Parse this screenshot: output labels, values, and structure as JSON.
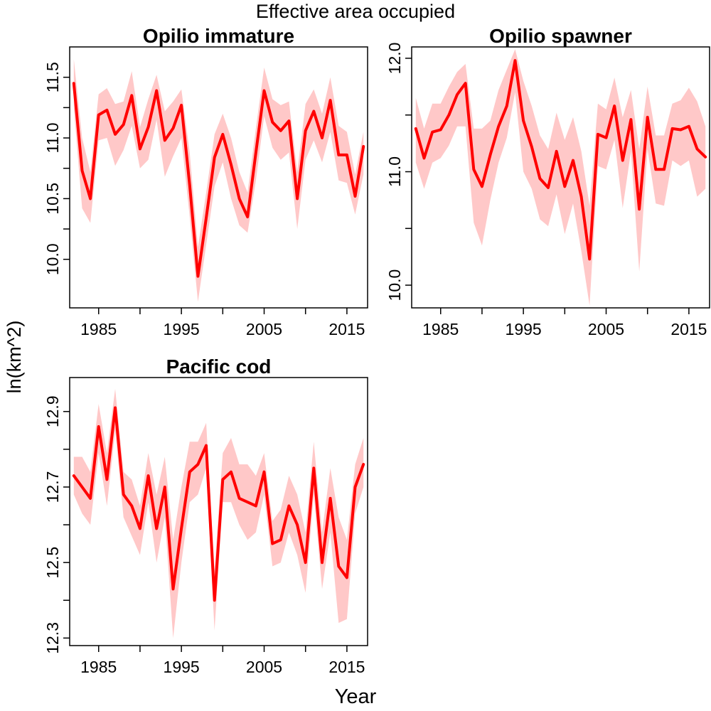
{
  "title": "Effective area occupied",
  "ylabel": "ln(km^2)",
  "xlabel": "Year",
  "colors": {
    "line": "#ff0000",
    "band": "#ffc8c8"
  },
  "chart_data": [
    {
      "type": "line",
      "title": "Opilio immature",
      "xlim": [
        1981.5,
        2017.5
      ],
      "ylim": [
        9.6,
        11.75
      ],
      "xticks": [
        1985,
        1995,
        2005,
        2015
      ],
      "yticks": [
        10.0,
        10.5,
        11.0,
        11.5
      ],
      "series": [
        {
          "x": [
            1982,
            1983,
            1984,
            1985,
            1986,
            1987,
            1988,
            1989,
            1990,
            1991,
            1992,
            1993,
            1994,
            1995,
            1996,
            1997,
            1998,
            1999,
            2000,
            2001,
            2002,
            2003,
            2004,
            2005,
            2006,
            2007,
            2008,
            2009,
            2010,
            2011,
            2012,
            2013,
            2014,
            2015,
            2016,
            2017
          ],
          "y": [
            11.45,
            10.73,
            10.5,
            11.19,
            11.23,
            11.03,
            11.11,
            11.35,
            10.91,
            11.09,
            11.39,
            10.98,
            11.08,
            11.27,
            10.61,
            9.86,
            10.34,
            10.84,
            11.03,
            10.78,
            10.5,
            10.35,
            10.88,
            11.39,
            11.13,
            11.06,
            11.14,
            10.5,
            11.06,
            11.22,
            11.0,
            11.31,
            10.86,
            10.86,
            10.52,
            10.93
          ],
          "lower": [
            11.25,
            10.42,
            10.3,
            10.98,
            11.0,
            10.77,
            10.9,
            11.1,
            10.75,
            10.82,
            11.15,
            10.68,
            10.85,
            11.0,
            10.35,
            9.65,
            10.12,
            10.6,
            10.8,
            10.5,
            10.28,
            10.22,
            10.65,
            11.18,
            10.92,
            10.82,
            10.88,
            10.25,
            10.82,
            10.98,
            10.8,
            11.05,
            10.65,
            10.63,
            10.37,
            10.7
          ],
          "upper": [
            11.65,
            11.0,
            10.72,
            11.36,
            11.41,
            11.28,
            11.3,
            11.55,
            11.09,
            11.32,
            11.52,
            11.22,
            11.3,
            11.4,
            10.88,
            10.1,
            10.55,
            11.03,
            11.2,
            11.0,
            10.72,
            10.55,
            11.08,
            11.58,
            11.32,
            11.27,
            11.3,
            10.72,
            11.28,
            11.4,
            11.2,
            11.5,
            11.1,
            11.05,
            10.7,
            11.05
          ]
        }
      ]
    },
    {
      "type": "line",
      "title": "Opilio spawner",
      "xlim": [
        1981.5,
        2017.5
      ],
      "ylim": [
        9.8,
        12.1
      ],
      "xticks": [
        1985,
        1995,
        2005,
        2015
      ],
      "yticks": [
        10.0,
        11.0,
        12.0
      ],
      "series": [
        {
          "x": [
            1982,
            1983,
            1984,
            1985,
            1986,
            1987,
            1988,
            1989,
            1990,
            1991,
            1992,
            1993,
            1994,
            1995,
            1996,
            1997,
            1998,
            1999,
            2000,
            2001,
            2002,
            2003,
            2004,
            2005,
            2006,
            2007,
            2008,
            2009,
            2010,
            2011,
            2012,
            2013,
            2014,
            2015,
            2016,
            2017
          ],
          "y": [
            11.38,
            11.12,
            11.35,
            11.37,
            11.5,
            11.68,
            11.78,
            11.02,
            10.87,
            11.15,
            11.4,
            11.58,
            11.98,
            11.45,
            11.22,
            10.94,
            10.86,
            11.18,
            10.87,
            11.1,
            10.78,
            10.23,
            11.33,
            11.3,
            11.58,
            11.1,
            11.46,
            10.67,
            11.48,
            11.02,
            11.02,
            11.38,
            11.37,
            11.4,
            11.2,
            11.13
          ],
          "lower": [
            11.08,
            10.85,
            11.08,
            11.12,
            11.23,
            11.4,
            11.4,
            10.55,
            10.35,
            10.75,
            11.08,
            11.3,
            11.7,
            11.0,
            10.85,
            10.58,
            10.52,
            10.8,
            10.45,
            10.72,
            10.3,
            9.82,
            11.05,
            11.02,
            11.28,
            10.68,
            11.18,
            10.12,
            11.2,
            10.72,
            10.7,
            11.1,
            11.05,
            11.1,
            10.78,
            10.85
          ],
          "upper": [
            11.65,
            11.38,
            11.6,
            11.6,
            11.75,
            11.88,
            11.95,
            11.38,
            11.38,
            11.45,
            11.72,
            11.9,
            12.08,
            11.8,
            11.58,
            11.32,
            11.2,
            11.52,
            11.28,
            11.48,
            11.18,
            10.7,
            11.6,
            11.55,
            11.83,
            11.48,
            11.72,
            11.2,
            11.75,
            11.32,
            11.32,
            11.6,
            11.63,
            11.74,
            11.62,
            11.4
          ]
        }
      ]
    },
    {
      "type": "line",
      "title": "Pacific cod",
      "xlim": [
        1981.5,
        2017.5
      ],
      "ylim": [
        12.28,
        12.99
      ],
      "xticks": [
        1985,
        1995,
        2005,
        2015
      ],
      "yticks": [
        12.3,
        12.5,
        12.7,
        12.9
      ],
      "series": [
        {
          "x": [
            1982,
            1983,
            1984,
            1985,
            1986,
            1987,
            1988,
            1989,
            1990,
            1991,
            1992,
            1993,
            1994,
            1995,
            1996,
            1997,
            1998,
            1999,
            2000,
            2001,
            2002,
            2003,
            2004,
            2005,
            2006,
            2007,
            2008,
            2009,
            2010,
            2011,
            2012,
            2013,
            2014,
            2015,
            2016,
            2017
          ],
          "y": [
            12.73,
            12.7,
            12.67,
            12.86,
            12.72,
            12.91,
            12.68,
            12.65,
            12.59,
            12.73,
            12.59,
            12.7,
            12.43,
            12.59,
            12.74,
            12.76,
            12.81,
            12.4,
            12.72,
            12.74,
            12.67,
            12.66,
            12.65,
            12.74,
            12.55,
            12.56,
            12.65,
            12.6,
            12.5,
            12.75,
            12.5,
            12.67,
            12.49,
            12.46,
            12.7,
            12.76
          ],
          "lower": [
            12.68,
            12.63,
            12.6,
            12.79,
            12.65,
            12.85,
            12.62,
            12.57,
            12.52,
            12.66,
            12.5,
            12.62,
            12.3,
            12.5,
            12.66,
            12.68,
            12.75,
            12.32,
            12.66,
            12.66,
            12.6,
            12.56,
            12.58,
            12.68,
            12.49,
            12.5,
            12.58,
            12.52,
            12.42,
            12.68,
            12.43,
            12.58,
            12.34,
            12.35,
            12.63,
            12.7
          ],
          "upper": [
            12.78,
            12.78,
            12.74,
            12.92,
            12.79,
            12.96,
            12.74,
            12.72,
            12.65,
            12.79,
            12.68,
            12.78,
            12.56,
            12.7,
            12.82,
            12.82,
            12.87,
            12.48,
            12.79,
            12.83,
            12.76,
            12.76,
            12.73,
            12.79,
            12.61,
            12.64,
            12.73,
            12.68,
            12.58,
            12.82,
            12.58,
            12.75,
            12.62,
            12.56,
            12.76,
            12.83
          ]
        }
      ]
    }
  ]
}
